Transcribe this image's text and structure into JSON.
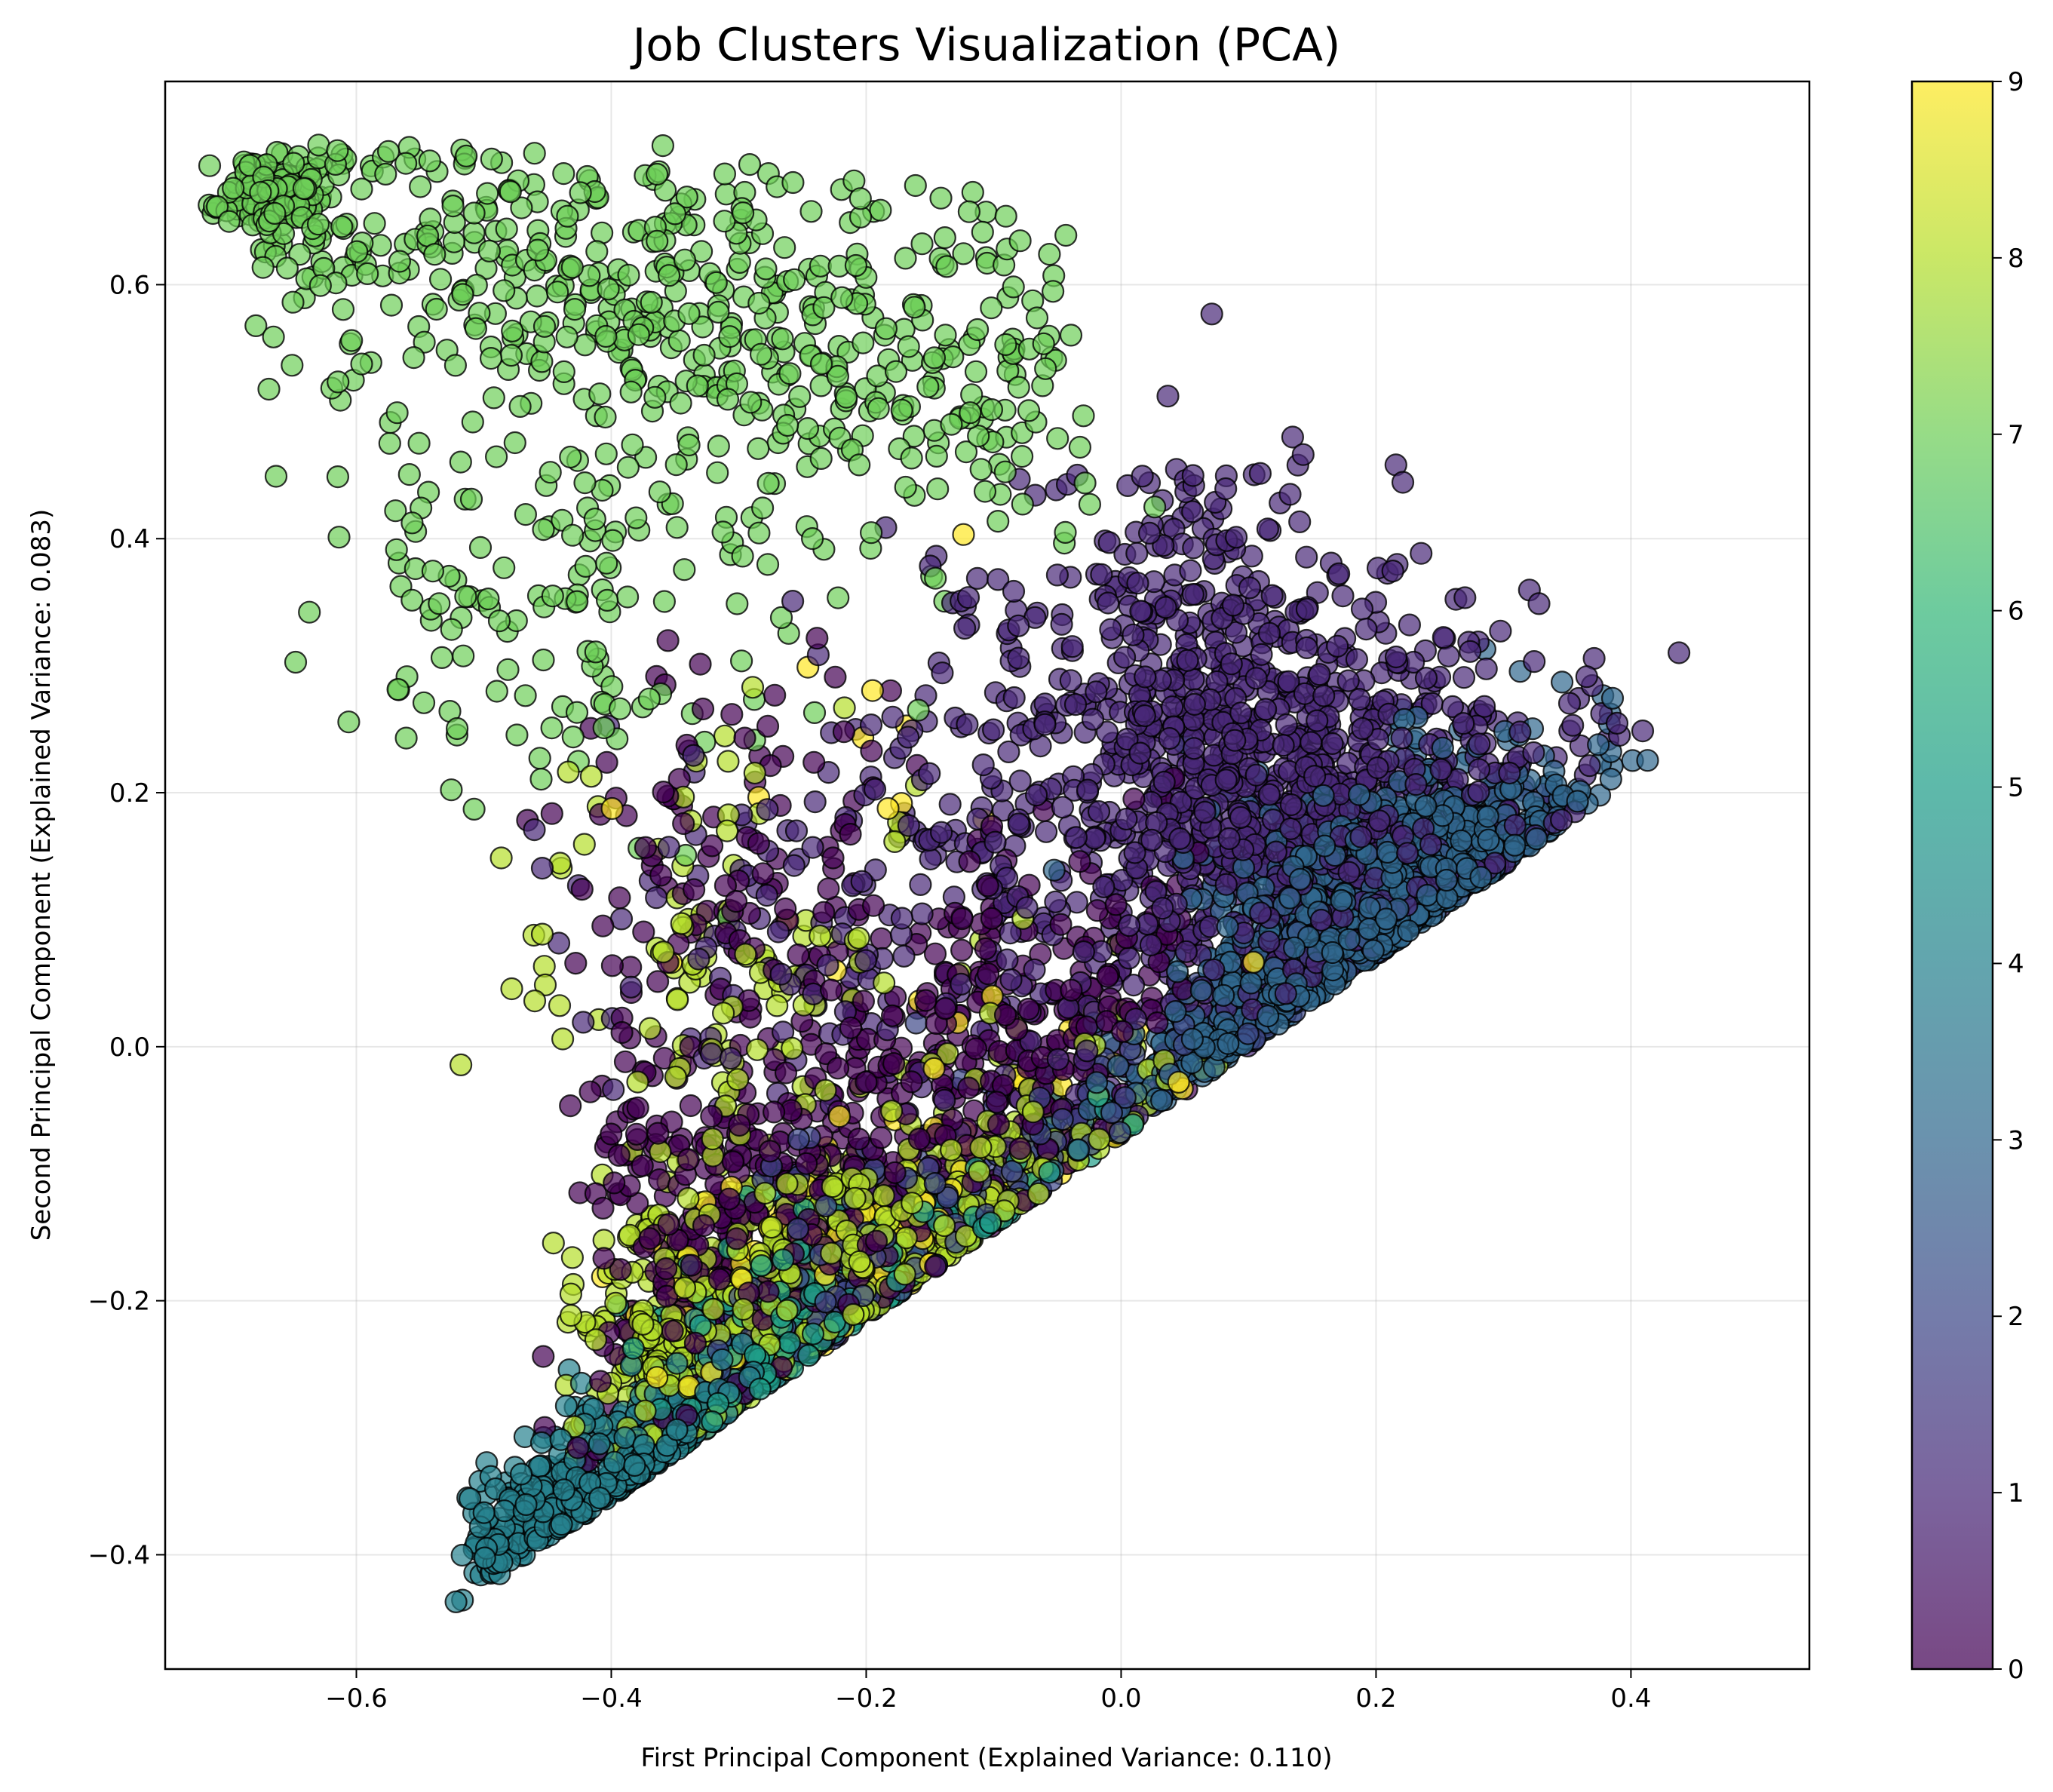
{
  "chart_data": {
    "type": "scatter",
    "title": "Job Clusters Visualization (PCA)",
    "xlabel": "First Principal Component (Explained Variance: 0.110)",
    "ylabel": "Second Principal Component (Explained Variance: 0.083)",
    "xlim": [
      -0.75,
      0.54
    ],
    "ylim": [
      -0.49,
      0.76
    ],
    "xticks": [
      -0.6,
      -0.4,
      -0.2,
      0.0,
      0.2,
      0.4
    ],
    "xtick_labels": [
      "−0.6",
      "−0.4",
      "−0.2",
      "0.0",
      "0.2",
      "0.4"
    ],
    "yticks": [
      -0.4,
      -0.2,
      0.0,
      0.2,
      0.4,
      0.6
    ],
    "ytick_labels": [
      "−0.4",
      "−0.2",
      "0.0",
      "0.2",
      "0.4",
      "0.6"
    ],
    "grid": true,
    "colormap": "viridis",
    "marker_alpha": 0.7,
    "marker_edge_color": "#000000",
    "colorbar": {
      "range": [
        0,
        9
      ],
      "ticks": [
        0,
        1,
        2,
        3,
        4,
        5,
        6,
        7,
        8,
        9
      ],
      "tick_labels": [
        "0",
        "1",
        "2",
        "3",
        "4",
        "5",
        "6",
        "7",
        "8",
        "9"
      ]
    },
    "clusters": [
      {
        "cluster": 7,
        "center": [
          -0.45,
          0.55
        ],
        "note": "upper-left arc, x -0.70 to -0.05, y 0.25 to 0.70"
      },
      {
        "cluster": 1,
        "center": [
          0.12,
          0.18
        ],
        "note": "dense mass x 0.0 to 0.40, y -0.05 to 0.45; sparse tail toward x -0.4"
      },
      {
        "cluster": 3,
        "center": [
          0.3,
          0.02
        ],
        "note": "right wedge x 0.1 to 0.49, y -0.15 to 0.26"
      },
      {
        "cluster": 4,
        "center": [
          -0.43,
          -0.36
        ],
        "note": "lower-left tip x -0.52 to -0.25, y -0.44 to -0.25"
      },
      {
        "cluster": 8,
        "center": [
          -0.12,
          -0.17
        ],
        "note": "lower diagonal band x -0.4 to 0.2, y -0.35 to 0.1"
      },
      {
        "cluster": 0,
        "center": [
          -0.22,
          -0.12
        ],
        "note": "mixed band x -0.45 to 0.1"
      },
      {
        "cluster": 5,
        "center": [
          -0.2,
          -0.22
        ],
        "note": "mixed lower band"
      },
      {
        "cluster": 2,
        "center": [
          0.05,
          -0.18
        ],
        "note": "mixed lower band"
      },
      {
        "cluster": 9,
        "center": [
          -0.05,
          -0.15
        ],
        "note": "scattered yellow points"
      }
    ]
  }
}
